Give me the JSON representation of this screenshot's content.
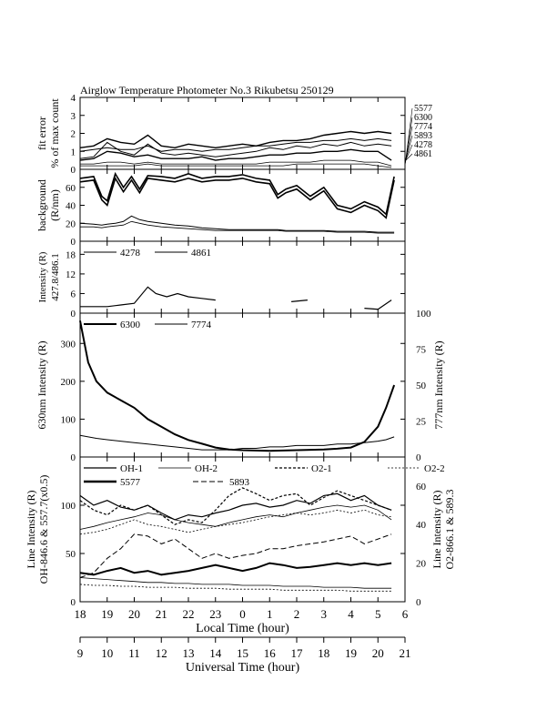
{
  "title": "Airglow Temperature Photometer No.3  Rikubetsu    250129",
  "chart_data": [
    {
      "id": "fit-error",
      "type": "line",
      "ylabel_lines": [
        "fit error",
        "% of max count"
      ],
      "ylim": [
        0,
        4
      ],
      "yticks": [
        "0",
        "1",
        "2",
        "3",
        "4"
      ],
      "right_labels": [
        "5577",
        "6300",
        "7774",
        "5893",
        "4278",
        "4861"
      ],
      "x": [
        18,
        18.5,
        19,
        19.5,
        20,
        20.5,
        21,
        21.5,
        22,
        22.5,
        23,
        23.5,
        24,
        24.5,
        25,
        25.5,
        26,
        26.5,
        27,
        27.5,
        28,
        28.5,
        29,
        29.5
      ],
      "series": [
        {
          "label": "5577",
          "width": 1.4,
          "values": [
            1.2,
            1.3,
            1.7,
            1.5,
            1.4,
            1.9,
            1.3,
            1.2,
            1.4,
            1.3,
            1.2,
            1.3,
            1.4,
            1.3,
            1.5,
            1.6,
            1.6,
            1.7,
            1.9,
            2.0,
            2.1,
            2.0,
            2.1,
            2.0
          ]
        },
        {
          "label": "6300",
          "width": 1.0,
          "values": [
            1.0,
            1.1,
            1.2,
            1.1,
            1.1,
            1.3,
            1.0,
            1.1,
            1.1,
            1.0,
            1.1,
            1.1,
            1.2,
            1.3,
            1.3,
            1.4,
            1.5,
            1.5,
            1.6,
            1.6,
            1.7,
            1.6,
            1.7,
            1.6
          ]
        },
        {
          "label": "7774",
          "width": 1.0,
          "values": [
            0.6,
            0.7,
            1.5,
            1.0,
            0.8,
            1.4,
            0.9,
            0.8,
            0.9,
            0.8,
            0.7,
            0.8,
            0.9,
            1.0,
            1.2,
            1.1,
            1.3,
            1.2,
            1.4,
            1.3,
            1.5,
            1.3,
            1.4,
            1.3
          ]
        },
        {
          "label": "5893",
          "width": 1.4,
          "values": [
            0.5,
            0.6,
            1.0,
            0.9,
            0.7,
            0.8,
            0.6,
            0.6,
            0.6,
            0.7,
            0.5,
            0.6,
            0.6,
            0.7,
            0.8,
            0.8,
            0.9,
            0.9,
            1.0,
            1.0,
            1.1,
            1.0,
            1.0,
            0.5
          ]
        },
        {
          "label": "4278",
          "width": 0.8,
          "values": [
            0.3,
            0.3,
            0.4,
            0.4,
            0.3,
            0.4,
            0.3,
            0.3,
            0.3,
            0.3,
            0.3,
            0.3,
            0.3,
            0.3,
            0.4,
            0.4,
            0.4,
            0.4,
            0.5,
            0.5,
            0.5,
            0.4,
            0.4,
            0.2
          ]
        },
        {
          "label": "4861",
          "width": 0.8,
          "values": [
            0.2,
            0.2,
            0.2,
            0.2,
            0.2,
            0.3,
            0.2,
            0.2,
            0.2,
            0.2,
            0.2,
            0.2,
            0.2,
            0.2,
            0.2,
            0.2,
            0.3,
            0.3,
            0.3,
            0.3,
            0.3,
            0.3,
            0.2,
            0.1
          ]
        }
      ]
    },
    {
      "id": "background",
      "type": "line",
      "ylabel_lines": [
        "background",
        "(R/nm)"
      ],
      "ylim": [
        0,
        80
      ],
      "yticks": [
        "0",
        "20",
        "40",
        "60"
      ],
      "x": [
        18,
        18.5,
        18.8,
        19,
        19.3,
        19.6,
        19.9,
        20.2,
        20.5,
        21,
        21.5,
        22,
        22.5,
        23,
        23.5,
        24,
        24.5,
        25,
        25.3,
        25.6,
        26,
        26.5,
        27,
        27.5,
        28,
        28.5,
        29,
        29.3,
        29.6
      ],
      "series": [
        {
          "width": 1.6,
          "values": [
            70,
            72,
            50,
            45,
            75,
            60,
            72,
            58,
            73,
            72,
            70,
            75,
            70,
            72,
            72,
            74,
            70,
            68,
            52,
            58,
            62,
            50,
            60,
            40,
            36,
            44,
            38,
            30,
            72
          ]
        },
        {
          "width": 1.6,
          "values": [
            66,
            68,
            46,
            40,
            70,
            55,
            68,
            54,
            70,
            68,
            66,
            70,
            66,
            68,
            68,
            70,
            66,
            64,
            48,
            54,
            58,
            46,
            56,
            36,
            32,
            40,
            34,
            26,
            68
          ]
        },
        {
          "width": 1.0,
          "values": [
            20,
            19,
            18,
            19,
            20,
            22,
            28,
            24,
            22,
            20,
            18,
            17,
            15,
            14,
            13,
            13,
            13,
            13,
            13,
            12,
            12,
            12,
            12,
            11,
            11,
            11,
            10,
            10,
            10
          ]
        },
        {
          "width": 0.8,
          "values": [
            16,
            16,
            15,
            16,
            17,
            18,
            22,
            20,
            18,
            16,
            15,
            14,
            13,
            12,
            12,
            12,
            12,
            12,
            12,
            11,
            11,
            11,
            11,
            10,
            10,
            10,
            9,
            9,
            9
          ]
        }
      ]
    },
    {
      "id": "blue-intensity",
      "type": "line",
      "ylabel_lines": [
        "Intensity (R)",
        "427.8/486.1"
      ],
      "ylim": [
        0,
        22
      ],
      "yticks": [
        "0",
        "6",
        "12",
        "18"
      ],
      "legend": [
        "4278",
        "4861"
      ],
      "segments": [
        {
          "x": [
            18.0,
            18.5,
            19.0,
            19.5,
            20.0,
            20.5,
            20.8,
            21.2,
            21.6,
            22.0,
            22.5,
            23.0
          ],
          "y": [
            2,
            2,
            2,
            2.5,
            3,
            8,
            6,
            5,
            6,
            5,
            4.5,
            4
          ]
        },
        {
          "x": [
            25.8,
            26.4
          ],
          "y": [
            3.5,
            4
          ]
        },
        {
          "x": [
            28.5,
            29.0,
            29.5
          ],
          "y": [
            1.5,
            1.2,
            4
          ]
        }
      ]
    },
    {
      "id": "red-intensity",
      "type": "line",
      "ylabel_left": "630nm Intensity (R)",
      "ylabel_right": "777nm Intensity (R)",
      "ylim_left": [
        0,
        380
      ],
      "ylim_right": [
        0,
        100
      ],
      "yticks_left": [
        "0",
        "100",
        "200",
        "300"
      ],
      "yticks_right": [
        "0",
        "25",
        "50",
        "75",
        "100"
      ],
      "legend": [
        "6300",
        "7774"
      ],
      "x": [
        18,
        18.3,
        18.6,
        19,
        19.5,
        20,
        20.5,
        21,
        21.5,
        22,
        22.5,
        23,
        23.5,
        24,
        24.5,
        25,
        25.5,
        26,
        26.5,
        27,
        27.5,
        28,
        28.5,
        29,
        29.3,
        29.6
      ],
      "series": [
        {
          "label": "6300",
          "axis": "left",
          "width": 2.0,
          "values": [
            360,
            250,
            200,
            170,
            150,
            130,
            100,
            80,
            60,
            45,
            35,
            25,
            20,
            18,
            17,
            16,
            17,
            18,
            19,
            20,
            22,
            25,
            40,
            80,
            130,
            190
          ]
        },
        {
          "label": "7774",
          "axis": "right",
          "width": 1.0,
          "values": [
            15,
            14,
            13,
            12,
            11,
            10,
            9,
            8,
            7,
            6,
            5,
            5,
            5,
            6,
            6,
            7,
            7,
            8,
            8,
            8,
            9,
            9,
            10,
            11,
            12,
            14
          ]
        }
      ]
    },
    {
      "id": "line-intensity",
      "type": "line",
      "ylabel_left_lines": [
        "Line Intensity (R)",
        "OH-846.6 & 557.7(x0.5)"
      ],
      "ylabel_right_lines": [
        "Line Intensity (R)",
        "O2-866.1 & 589.3"
      ],
      "ylim": [
        0,
        150
      ],
      "yticks_left": [
        "0",
        "50",
        "100"
      ],
      "yticks_right": [
        "0",
        "20",
        "40",
        "60"
      ],
      "legend": [
        "OH-1",
        "OH-2",
        "O2-1",
        "O2-2",
        "5577",
        "5893"
      ],
      "x": [
        18,
        18.5,
        19,
        19.5,
        20,
        20.5,
        21,
        21.5,
        22,
        22.5,
        23,
        23.5,
        24,
        24.5,
        25,
        25.5,
        26,
        26.5,
        27,
        27.5,
        28,
        28.5,
        29,
        29.5
      ],
      "series": [
        {
          "label": "OH-1",
          "dash": "",
          "width": 1.2,
          "values": [
            110,
            100,
            105,
            98,
            95,
            100,
            92,
            85,
            90,
            88,
            92,
            95,
            100,
            102,
            98,
            100,
            105,
            102,
            110,
            112,
            105,
            110,
            100,
            95
          ]
        },
        {
          "label": "OH-2",
          "dash": "",
          "width": 0.8,
          "values": [
            75,
            78,
            82,
            85,
            88,
            92,
            90,
            85,
            82,
            80,
            78,
            82,
            85,
            88,
            90,
            88,
            92,
            95,
            98,
            100,
            98,
            100,
            95,
            85
          ]
        },
        {
          "label": "O2-1",
          "dash": "3,2",
          "width": 1.2,
          "values": [
            105,
            95,
            90,
            100,
            95,
            100,
            90,
            80,
            85,
            82,
            95,
            110,
            118,
            112,
            105,
            110,
            112,
            100,
            108,
            115,
            110,
            105,
            100,
            95
          ]
        },
        {
          "label": "O2-2",
          "dash": "2,2",
          "width": 0.8,
          "values": [
            70,
            72,
            75,
            80,
            85,
            80,
            78,
            75,
            72,
            75,
            78,
            80,
            82,
            85,
            88,
            90,
            92,
            90,
            92,
            95,
            92,
            95,
            90,
            88
          ]
        },
        {
          "label": "5577",
          "dash": "",
          "width": 2.0,
          "values": [
            30,
            28,
            32,
            35,
            30,
            32,
            28,
            30,
            32,
            35,
            38,
            35,
            32,
            35,
            40,
            38,
            35,
            36,
            38,
            40,
            38,
            40,
            38,
            40
          ]
        },
        {
          "label": "5893",
          "dash": "6,3",
          "width": 1.0,
          "values": [
            25,
            30,
            45,
            55,
            70,
            68,
            60,
            65,
            55,
            45,
            50,
            45,
            48,
            50,
            55,
            55,
            58,
            60,
            62,
            65,
            68,
            60,
            65,
            70
          ]
        },
        {
          "label": "",
          "dash": "",
          "width": 0.8,
          "values": [
            25,
            24,
            23,
            22,
            21,
            20,
            20,
            19,
            19,
            18,
            18,
            18,
            17,
            17,
            17,
            16,
            16,
            16,
            15,
            15,
            15,
            14,
            14,
            14
          ]
        },
        {
          "label": "",
          "dash": "2,2",
          "width": 0.8,
          "values": [
            18,
            17,
            17,
            16,
            16,
            15,
            15,
            15,
            14,
            14,
            14,
            13,
            13,
            13,
            13,
            12,
            12,
            12,
            12,
            12,
            11,
            11,
            11,
            11
          ]
        }
      ]
    }
  ],
  "axes": {
    "local_xlabel": "Local Time (hour)",
    "local_ticks": [
      "18",
      "19",
      "20",
      "21",
      "22",
      "23",
      "0",
      "1",
      "2",
      "3",
      "4",
      "5",
      "6"
    ],
    "ut_xlabel": "Universal Time (hour)",
    "ut_ticks": [
      "9",
      "10",
      "11",
      "12",
      "13",
      "14",
      "15",
      "16",
      "17",
      "18",
      "19",
      "20",
      "21"
    ]
  }
}
